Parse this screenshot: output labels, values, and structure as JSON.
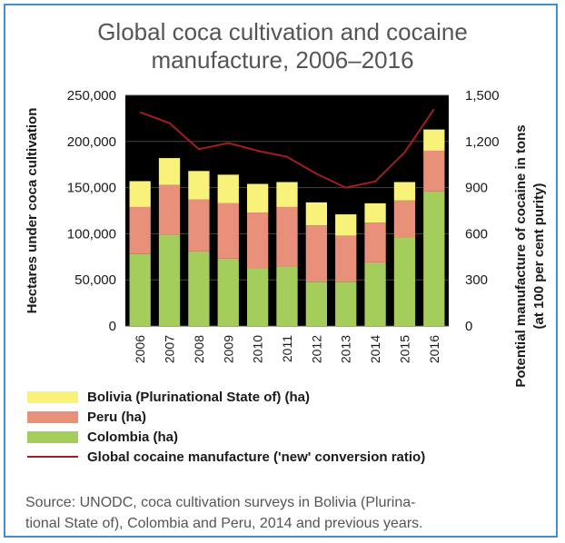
{
  "colors": {
    "bolivia": "#f8f27a",
    "peru": "#e9907a",
    "colombia": "#a5cd5c",
    "line": "#a51c1c",
    "plot_bg": "#000000",
    "frame": "#3f8fd2"
  },
  "chart_data": {
    "type": "bar",
    "stacked": true,
    "title_line1": "Global coca cultivation and cocaine",
    "title_line2": "manufacture, 2006–2016",
    "ylabel": "Hectares under coca cultivation",
    "y2label_line1": "Potential manufacture of cocaine in tons",
    "y2label_line2": "(at 100 per cent  purity)",
    "categories": [
      "2006",
      "2007",
      "2008",
      "2009",
      "2010",
      "2011",
      "2012",
      "2013",
      "2014",
      "2015",
      "2016"
    ],
    "ylim": [
      0,
      250000
    ],
    "y_ticks": [
      "0",
      "50,000",
      "100,000",
      "150,000",
      "200,000",
      "250,000"
    ],
    "y2lim": [
      0,
      1500
    ],
    "y2_ticks": [
      "0",
      "300",
      "600",
      "900",
      "1,200",
      "1,500"
    ],
    "grid": true,
    "series": [
      {
        "name": "Colombia (ha)",
        "axis": "left",
        "values": [
          78000,
          99000,
          81000,
          73000,
          62000,
          64000,
          48000,
          48000,
          69000,
          96000,
          146000
        ]
      },
      {
        "name": "Peru (ha)",
        "axis": "left",
        "values": [
          51000,
          54000,
          56000,
          60000,
          61000,
          65000,
          61000,
          50000,
          43000,
          40000,
          44000
        ]
      },
      {
        "name": "Bolivia (Plurinational State of) (ha)",
        "axis": "left",
        "values": [
          28000,
          29000,
          31000,
          31000,
          31000,
          27000,
          25000,
          23000,
          21000,
          20000,
          23000
        ]
      },
      {
        "name": "Global cocaine manufacture ('new' conversion ratio)",
        "axis": "right",
        "type": "line",
        "values": [
          1390,
          1320,
          1150,
          1190,
          1140,
          1100,
          990,
          900,
          940,
          1130,
          1410
        ]
      }
    ],
    "legend_position": "bottom-left"
  },
  "source_line1": "Source: UNODC, coca cultivation surveys in Bolivia (Plurina-",
  "source_line2": "tional State of), Colombia and Peru, 2014 and previous years."
}
